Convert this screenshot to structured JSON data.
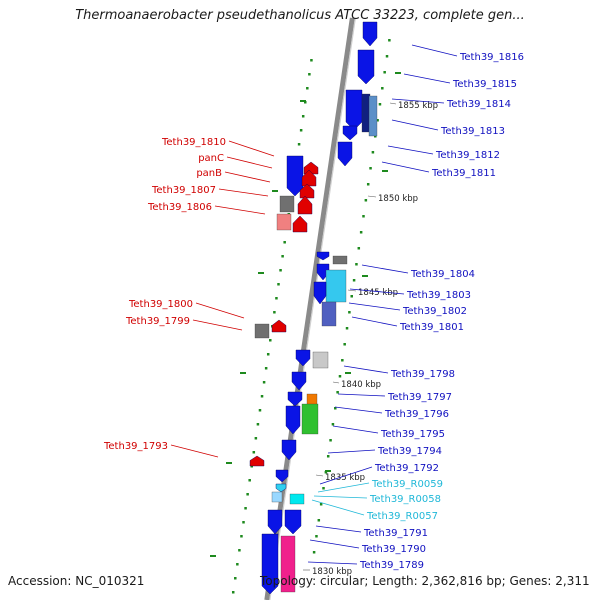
{
  "title": "Thermoanaerobacter pseudethanolicus ATCC 33223, complete gen...",
  "accession": "Accession: NC_010321",
  "summary": "Topology: circular; Length: 2,362,816 bp; Genes: 2,311",
  "colors": {
    "forward_gene": "#0a14e6",
    "reverse_gene": "#e00000",
    "rna": "#00b8d8",
    "backbone": "#8a8a8a",
    "dots": "#1e8a1e"
  },
  "ticks": [
    "1855 kbp",
    "1850 kbp",
    "1845 kbp",
    "1840 kbp",
    "1835 kbp",
    "1830 kbp"
  ],
  "right_labels": [
    {
      "text": "Teth39_1816",
      "color": "#1010c0"
    },
    {
      "text": "Teth39_1815",
      "color": "#1010c0"
    },
    {
      "text": "Teth39_1814",
      "color": "#1010c0"
    },
    {
      "text": "Teth39_1813",
      "color": "#1010c0"
    },
    {
      "text": "Teth39_1812",
      "color": "#1010c0"
    },
    {
      "text": "Teth39_1811",
      "color": "#1010c0"
    },
    {
      "text": "Teth39_1804",
      "color": "#1010c0"
    },
    {
      "text": "Teth39_1803",
      "color": "#1010c0"
    },
    {
      "text": "Teth39_1802",
      "color": "#1010c0"
    },
    {
      "text": "Teth39_1801",
      "color": "#1010c0"
    },
    {
      "text": "Teth39_1798",
      "color": "#1010c0"
    },
    {
      "text": "Teth39_1797",
      "color": "#1010c0"
    },
    {
      "text": "Teth39_1796",
      "color": "#1010c0"
    },
    {
      "text": "Teth39_1795",
      "color": "#1010c0"
    },
    {
      "text": "Teth39_1794",
      "color": "#1010c0"
    },
    {
      "text": "Teth39_1792",
      "color": "#1010c0"
    },
    {
      "text": "Teth39_R0059",
      "color": "#20b8d8"
    },
    {
      "text": "Teth39_R0058",
      "color": "#20b8d8"
    },
    {
      "text": "Teth39_R0057",
      "color": "#20b8d8"
    },
    {
      "text": "Teth39_1791",
      "color": "#1010c0"
    },
    {
      "text": "Teth39_1790",
      "color": "#1010c0"
    },
    {
      "text": "Teth39_1789",
      "color": "#1010c0"
    }
  ],
  "left_labels": [
    {
      "text": "Teth39_1810",
      "color": "#d00000"
    },
    {
      "text": "panC",
      "color": "#d00000"
    },
    {
      "text": "panB",
      "color": "#d00000"
    },
    {
      "text": "Teth39_1807",
      "color": "#d00000"
    },
    {
      "text": "Teth39_1806",
      "color": "#d00000"
    },
    {
      "text": "Teth39_1800",
      "color": "#d00000"
    },
    {
      "text": "Teth39_1799",
      "color": "#d00000"
    },
    {
      "text": "Teth39_1793",
      "color": "#d00000"
    }
  ]
}
